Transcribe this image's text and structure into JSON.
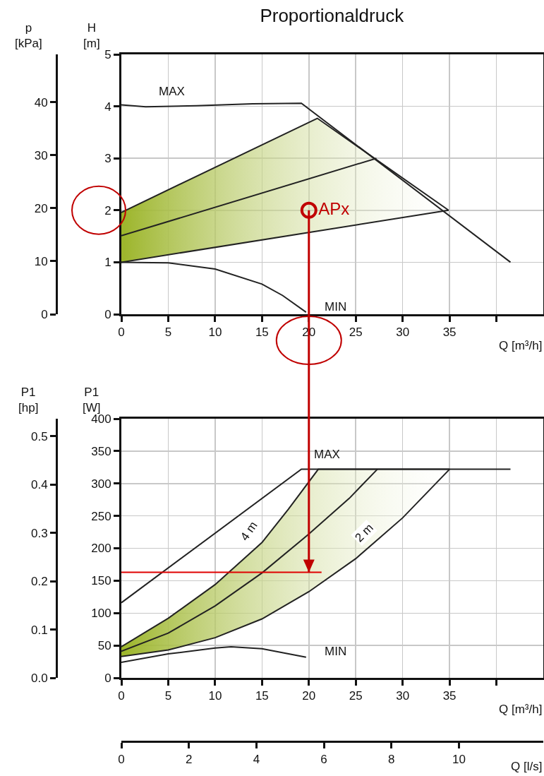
{
  "chart_data": [
    {
      "type": "line",
      "title": "Proportionaldruck",
      "xlabel": "Q [m³/h]",
      "ylabel": "H\n[m]",
      "y2label": "p\n[kPa]",
      "xlim": [
        0,
        45
      ],
      "xticks": [
        0,
        5,
        10,
        15,
        20,
        25,
        30,
        35,
        {
          "value": 40,
          "label": null
        }
      ],
      "ylim": [
        0,
        5
      ],
      "yticks": [
        0,
        1,
        2,
        3,
        4,
        5
      ],
      "y2lim": [
        0,
        49
      ],
      "y2ticks": [
        0,
        10,
        20,
        30,
        40
      ],
      "grid": true,
      "series": [
        {
          "type": "line",
          "color": "#222222",
          "x": [
            0,
            2.6,
            8,
            14,
            19.2,
            41.5
          ],
          "values": [
            4.03,
            3.99,
            4.01,
            4.05,
            4.06,
            1.0
          ]
        },
        {
          "type": "line",
          "color": "#222222",
          "x": [
            0,
            5,
            10,
            15,
            17.2,
            19.7
          ],
          "values": [
            1.0,
            0.99,
            0.87,
            0.58,
            0.36,
            0.04
          ]
        },
        {
          "type": "line",
          "color": "#222222",
          "x": [
            0,
            27.2
          ],
          "values": [
            1.51,
            3.0
          ]
        },
        {
          "type": "scatter",
          "name": "APx",
          "color": "#c00000",
          "marker": "circle",
          "x": [
            20
          ],
          "values": [
            2
          ]
        },
        {
          "type": "area",
          "color": "#9cb52a",
          "x": [
            0,
            20.9,
            34.9,
            0
          ],
          "values": [
            1.96,
            3.77,
            2.0,
            1.0
          ]
        }
      ],
      "ref_lines": [
        {
          "axis": "x",
          "value": 20,
          "color": "#c00000"
        }
      ],
      "annotations": [
        "MAX",
        "MIN"
      ]
    },
    {
      "type": "line",
      "xlabel": "Q [m³/h]",
      "ylabel": "P1\n[W]",
      "y2label": "P1\n[hp]",
      "x2label": "Q [l/s]",
      "xlim": [
        0,
        45
      ],
      "xticks": [
        0,
        5,
        10,
        15,
        20,
        25,
        30,
        35,
        {
          "value": 40,
          "label": null
        }
      ],
      "ylim": [
        0,
        400
      ],
      "yticks": [
        0,
        50,
        100,
        150,
        200,
        250,
        300,
        350,
        400
      ],
      "y2lim": [
        0,
        0.536
      ],
      "y2ticks": [
        {
          "value": 0,
          "label": "0.0"
        },
        0.1,
        0.2,
        0.3,
        0.4,
        0.5
      ],
      "x2lim": [
        0,
        12.5
      ],
      "x2ticks": [
        0,
        2,
        4,
        6,
        8,
        10
      ],
      "grid": true,
      "series": [
        {
          "type": "line",
          "color": "#222222",
          "x": [
            0,
            19.2,
            41.5
          ],
          "values": [
            116,
            322,
            322
          ]
        },
        {
          "type": "line",
          "color": "#222222",
          "x": [
            0,
            5,
            10,
            11.7,
            15,
            19.7
          ],
          "values": [
            24,
            37,
            46,
            48,
            45,
            32
          ]
        },
        {
          "type": "line",
          "color": "#222222",
          "x": [
            0,
            5,
            10,
            15,
            20,
            24.3,
            27.3
          ],
          "values": [
            41,
            69,
            111,
            162,
            222,
            277,
            322
          ]
        },
        {
          "type": "area",
          "color": "#9cb52a",
          "x": [
            0,
            5,
            10,
            15,
            17.8,
            21,
            35,
            30,
            25,
            20,
            15,
            10,
            5,
            0
          ],
          "values": [
            48,
            92,
            144,
            209,
            260,
            322,
            322,
            247,
            184,
            133,
            91,
            62,
            43,
            33
          ]
        }
      ],
      "ref_lines": [
        {
          "axis": "y",
          "value": 163,
          "color": "#e00000"
        },
        {
          "axis": "x",
          "value": 20,
          "color": "#c00000"
        }
      ],
      "annotations": [
        "MAX",
        "MIN",
        {
          "text": "4 m",
          "x": 13.6,
          "y": 226
        },
        {
          "text": "2 m",
          "x": 25.9,
          "y": 224
        }
      ]
    }
  ]
}
